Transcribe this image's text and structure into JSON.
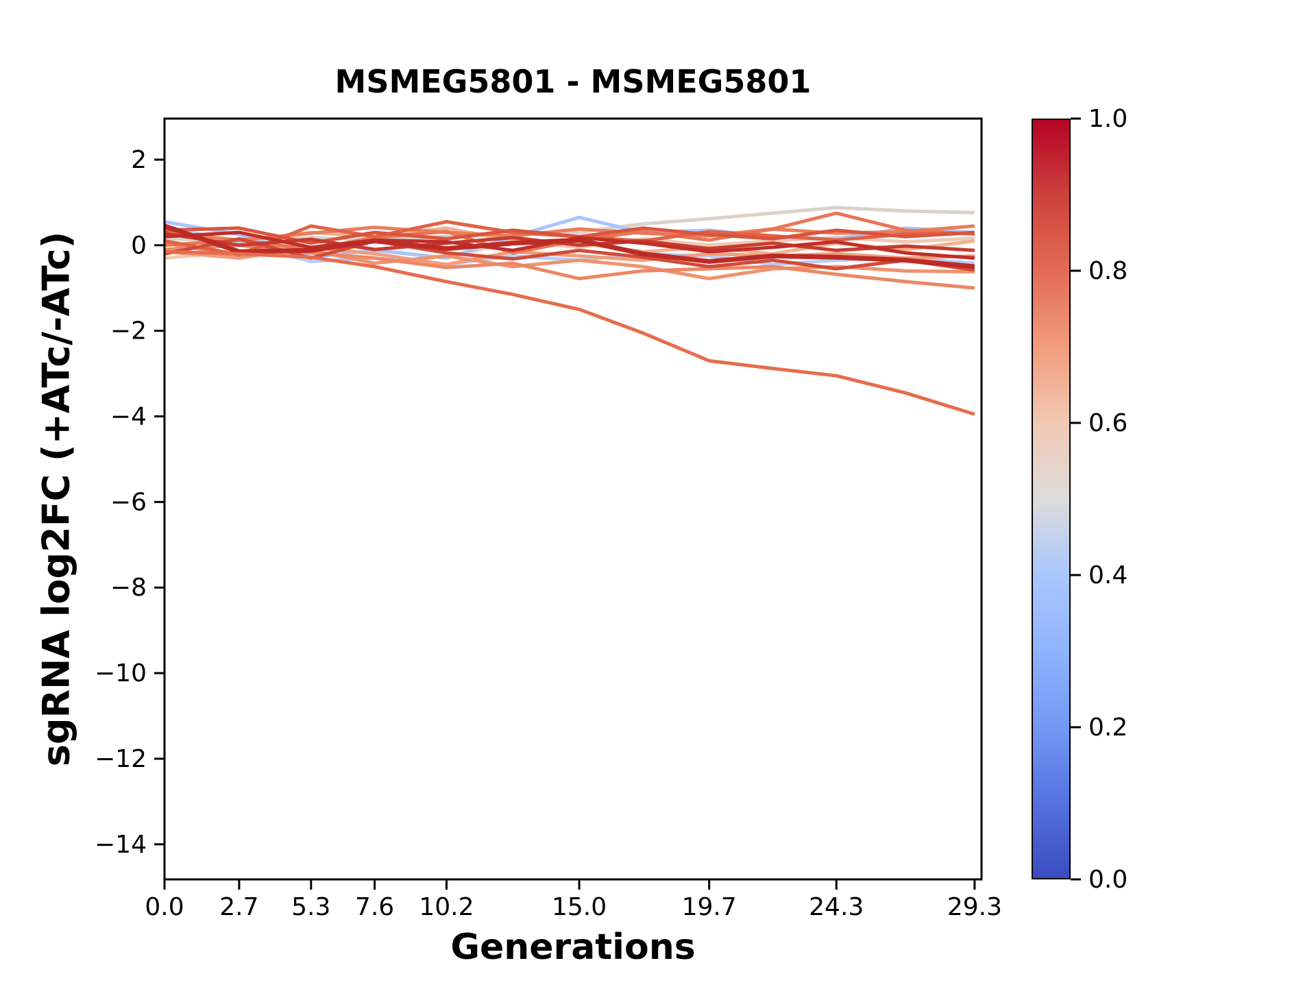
{
  "chart_data": {
    "type": "line",
    "title": "MSMEG5801 - MSMEG5801",
    "xlabel": "Generations",
    "ylabel": "sgRNA log2FC (+ATc/-ATc)",
    "background": "#ffffff",
    "grid": false,
    "xlim": [
      0,
      29.55
    ],
    "ylim": [
      -14.82,
      2.96
    ],
    "xtick_values": [
      0.0,
      2.7,
      5.3,
      7.6,
      10.2,
      15.0,
      19.7,
      24.3,
      29.3
    ],
    "xtick_labels": [
      "0.0",
      "2.7",
      "5.3",
      "7.6",
      "10.2",
      "15.0",
      "19.7",
      "24.3",
      "29.3"
    ],
    "ytick_values": [
      2,
      0,
      -2,
      -4,
      -6,
      -8,
      -10,
      -12,
      -14
    ],
    "ytick_labels": [
      "2",
      "0",
      "−2",
      "−4",
      "−6",
      "−8",
      "−10",
      "−12",
      "−14"
    ],
    "x": [
      0,
      2.7,
      5.3,
      7.6,
      10.2,
      12.6,
      15.0,
      17.3,
      19.7,
      22.0,
      24.3,
      26.8,
      29.3
    ],
    "series": [
      {
        "name": "line01",
        "cmap_value": 0.54,
        "color": "#d9d2ca",
        "width": 5,
        "values": [
          0.15,
          0.1,
          0.18,
          0.12,
          0.2,
          0.25,
          0.3,
          0.5,
          0.62,
          0.75,
          0.88,
          0.8,
          0.76
        ]
      },
      {
        "name": "line02",
        "cmap_value": 0.6,
        "color": "#f0c9b2",
        "width": 5,
        "values": [
          -0.3,
          -0.15,
          0.1,
          -0.1,
          -0.3,
          0.1,
          -0.05,
          0.15,
          0.0,
          0.1,
          0.18,
          0.08,
          0.16
        ]
      },
      {
        "name": "line03",
        "cmap_value": 0.65,
        "color": "#f3b18e",
        "width": 5,
        "values": [
          0.25,
          0.1,
          0.3,
          0.2,
          0.4,
          0.1,
          0.05,
          -0.15,
          -0.05,
          -0.2,
          0.05,
          -0.1,
          0.1
        ]
      },
      {
        "name": "line04",
        "cmap_value": 0.44,
        "color": "#b7cdf9",
        "width": 5,
        "values": [
          0.45,
          0.05,
          -0.38,
          -0.3,
          -0.45,
          -0.25,
          -0.35,
          -0.2,
          -0.25,
          -0.45,
          -0.35,
          -0.3,
          -0.42
        ]
      },
      {
        "name": "line05",
        "cmap_value": 0.4,
        "color": "#a9c5fd",
        "width": 5,
        "values": [
          0.55,
          0.25,
          -0.28,
          -0.12,
          -0.3,
          0.2,
          0.65,
          0.3,
          0.35,
          0.2,
          0.15,
          0.4,
          0.3
        ]
      },
      {
        "name": "line06",
        "cmap_value": 0.7,
        "color": "#f19d7c",
        "width": 5,
        "values": [
          -0.15,
          -0.3,
          -0.05,
          -0.2,
          -0.45,
          -0.15,
          -0.25,
          -0.35,
          -0.2,
          -0.25,
          -0.2,
          -0.3,
          -0.25
        ]
      },
      {
        "name": "line07",
        "cmap_value": 0.72,
        "color": "#ef9270",
        "width": 5,
        "values": [
          0.05,
          -0.25,
          -0.12,
          -0.42,
          -0.25,
          -0.5,
          -0.35,
          -0.5,
          -0.78,
          -0.55,
          -0.5,
          -0.6,
          -0.62
        ]
      },
      {
        "name": "line08",
        "cmap_value": 0.74,
        "color": "#ec8765",
        "width": 5,
        "values": [
          -0.1,
          0.0,
          -0.18,
          -0.3,
          -0.52,
          -0.42,
          -0.78,
          -0.6,
          -0.55,
          -0.5,
          -0.68,
          -0.85,
          -1.0
        ]
      },
      {
        "name": "line09",
        "cmap_value": 0.76,
        "color": "#ea7e5c",
        "width": 5,
        "values": [
          0.3,
          0.12,
          0.28,
          0.42,
          0.3,
          0.22,
          0.38,
          0.28,
          0.22,
          0.38,
          0.28,
          0.32,
          0.45
        ]
      },
      {
        "name": "line10",
        "cmap_value": 0.78,
        "color": "#e87655",
        "width": 5,
        "values": [
          0.0,
          0.12,
          -0.1,
          0.18,
          0.32,
          -0.18,
          0.12,
          0.32,
          0.12,
          0.38,
          0.75,
          0.35,
          0.26
        ]
      },
      {
        "name": "line11",
        "cmap_value": 0.82,
        "color": "#e16245",
        "width": 5,
        "values": [
          0.1,
          -0.22,
          0.45,
          0.2,
          0.55,
          0.3,
          0.2,
          0.1,
          0.32,
          0.22,
          0.12,
          0.26,
          0.28
        ]
      },
      {
        "name": "line12",
        "cmap_value": 0.85,
        "color": "#da543d",
        "width": 5,
        "values": [
          0.35,
          0.4,
          0.05,
          0.3,
          0.15,
          0.35,
          0.2,
          0.4,
          0.25,
          0.15,
          0.35,
          0.2,
          0.3
        ]
      },
      {
        "name": "line13",
        "cmap_value": 0.88,
        "color": "#d24b38",
        "width": 5,
        "values": [
          -0.2,
          0.15,
          -0.3,
          0.1,
          -0.18,
          -0.32,
          -0.12,
          -0.28,
          -0.5,
          -0.35,
          -0.55,
          -0.35,
          -0.58
        ]
      },
      {
        "name": "line14",
        "cmap_value": 0.92,
        "color": "#c63b31",
        "width": 5,
        "values": [
          0.28,
          0.0,
          0.14,
          -0.1,
          0.05,
          0.18,
          0.0,
          0.1,
          -0.08,
          0.05,
          -0.12,
          -0.02,
          -0.12
        ]
      },
      {
        "name": "line15",
        "cmap_value": 0.95,
        "color": "#c02e28",
        "width": 5,
        "values": [
          0.2,
          0.3,
          -0.05,
          0.12,
          0.08,
          -0.12,
          0.18,
          0.05,
          -0.15,
          -0.05,
          0.08,
          -0.18,
          -0.3
        ]
      },
      {
        "name": "line16",
        "cmap_value": 0.97,
        "color": "#bd2b26",
        "width": 7,
        "values": [
          0.45,
          -0.15,
          -0.12,
          0.1,
          -0.08,
          0.05,
          0.12,
          -0.2,
          -0.38,
          -0.25,
          -0.28,
          -0.35,
          -0.5
        ]
      },
      {
        "name": "line17",
        "cmap_value": 0.8,
        "color": "#e56d4d",
        "width": 5,
        "values": [
          -0.15,
          -0.2,
          -0.28,
          -0.5,
          -0.85,
          -1.15,
          -1.5,
          -2.05,
          -2.7,
          -2.88,
          -3.05,
          -3.45,
          -3.95
        ]
      }
    ],
    "colorbar": {
      "tick_labels": [
        "1.0",
        "0.8",
        "0.6",
        "0.4",
        "0.2",
        "0.0"
      ],
      "tick_values": [
        1.0,
        0.8,
        0.6,
        0.4,
        0.2,
        0.0
      ],
      "colormap": "coolwarm",
      "gradient_stops": [
        {
          "t": 0.0,
          "c": "#3b4cc0"
        },
        {
          "t": 0.1,
          "c": "#5572df"
        },
        {
          "t": 0.2,
          "c": "#7399f5"
        },
        {
          "t": 0.3,
          "c": "#8fb3fe"
        },
        {
          "t": 0.4,
          "c": "#aac7fd"
        },
        {
          "t": 0.5,
          "c": "#dcdcdb"
        },
        {
          "t": 0.6,
          "c": "#f2c9b4"
        },
        {
          "t": 0.7,
          "c": "#f19d7c"
        },
        {
          "t": 0.8,
          "c": "#e36c55"
        },
        {
          "t": 0.9,
          "c": "#cd423b"
        },
        {
          "t": 1.0,
          "c": "#b40426"
        }
      ]
    },
    "axis_color": "#000000"
  }
}
